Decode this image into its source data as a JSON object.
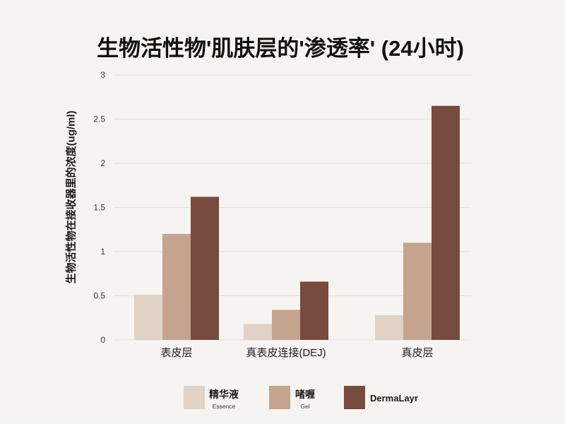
{
  "chart_data": {
    "type": "bar",
    "title": "生物活性物'肌肤层的'渗透率' (24小时)",
    "ylabel": "生物活性物在接收器里的浓度(ug/ml)",
    "categories": [
      "表皮层",
      "真表皮连接(DEJ)",
      "真皮层"
    ],
    "series": [
      {
        "name": "精华液",
        "name_en": "Essence",
        "color": "#E0D3C6",
        "values": [
          0.51,
          0.18,
          0.28
        ]
      },
      {
        "name": "啫喱",
        "name_en": "Gel",
        "color": "#C4A48E",
        "values": [
          1.2,
          0.34,
          1.1
        ]
      },
      {
        "name": "DermaLayr",
        "color": "#774B3D",
        "values": [
          1.62,
          0.66,
          2.65
        ]
      }
    ],
    "ylim": [
      0,
      3
    ],
    "yticks": [
      0,
      0.5,
      1,
      1.5,
      2,
      2.5,
      3
    ],
    "grid": true,
    "legend_position": "bottom"
  },
  "colors": {
    "background": "#F6F4F1",
    "gridline": "#E2DED9"
  }
}
